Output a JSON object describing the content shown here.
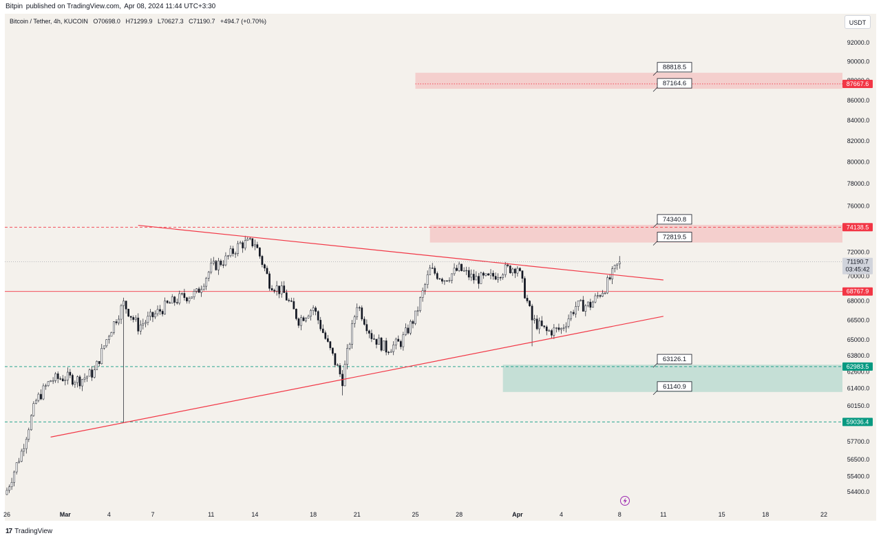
{
  "header": {
    "publisher": "Bitpin",
    "published_text": "published on TradingView.com,",
    "date_text": "Apr 08, 2024 11:44 UTC+3:30"
  },
  "symbol": {
    "name": "Bitcoin / Tether, 4h, KUCOIN",
    "open": "O70698.0",
    "high": "H71299.9",
    "low": "L70627.3",
    "close": "C71190.7",
    "change": "+494.7 (+0.70%)"
  },
  "currency": "USDT",
  "footer": {
    "logo": "17",
    "brand": "TradingView"
  },
  "colors": {
    "background": "#f4f1ec",
    "up": "#ffffff",
    "down": "#131722",
    "resistance": "#f23645",
    "support": "#089981",
    "zone_red": "rgba(242,54,69,0.18)",
    "zone_green": "rgba(8,153,129,0.20)"
  },
  "chart_data": {
    "type": "candlestick",
    "x_unit": "date (2024, 4h bars)",
    "x_range": [
      "2024-02-26",
      "2024-04-23"
    ],
    "y_scale": "log",
    "price_ticks": [
      92000.0,
      90000.0,
      88000.0,
      86000.0,
      84000.0,
      82000.0,
      80000.0,
      78000.0,
      76000.0,
      72000.0,
      70000.0,
      68000.0,
      66500.0,
      65000.0,
      63800.0,
      62600.0,
      61400.0,
      60150.0,
      57700.0,
      56500.0,
      55400.0,
      54400.0
    ],
    "x_ticks": [
      "26",
      "Mar",
      "4",
      "7",
      "11",
      "14",
      "18",
      "21",
      "25",
      "28",
      "Apr",
      "4",
      "8",
      "11",
      "15",
      "18",
      "22"
    ],
    "x_tick_dates": [
      "2024-02-26",
      "2024-03-01",
      "2024-03-04",
      "2024-03-07",
      "2024-03-11",
      "2024-03-14",
      "2024-03-18",
      "2024-03-21",
      "2024-03-25",
      "2024-03-28",
      "2024-04-01",
      "2024-04-04",
      "2024-04-08",
      "2024-04-11",
      "2024-04-15",
      "2024-04-18",
      "2024-04-22"
    ],
    "price_path": [
      [
        "2024-02-26",
        54500
      ],
      [
        "2024-02-27",
        57000
      ],
      [
        "2024-02-28",
        60500
      ],
      [
        "2024-02-29",
        62000
      ],
      [
        "2024-03-01",
        62200
      ],
      [
        "2024-03-02",
        62000
      ],
      [
        "2024-03-03",
        62600
      ],
      [
        "2024-03-04",
        65500
      ],
      [
        "2024-03-05",
        67800
      ],
      [
        "2024-03-06",
        66000
      ],
      [
        "2024-03-07",
        66800
      ],
      [
        "2024-03-08",
        67700
      ],
      [
        "2024-03-09",
        68300
      ],
      [
        "2024-03-10",
        68600
      ],
      [
        "2024-03-11",
        70700
      ],
      [
        "2024-03-12",
        71400
      ],
      [
        "2024-03-13",
        72700
      ],
      [
        "2024-03-14",
        72800
      ],
      [
        "2024-03-15",
        69500
      ],
      [
        "2024-03-16",
        68600
      ],
      [
        "2024-03-17",
        66500
      ],
      [
        "2024-03-18",
        67500
      ],
      [
        "2024-03-19",
        64600
      ],
      [
        "2024-03-20",
        62000
      ],
      [
        "2024-03-21",
        67800
      ],
      [
        "2024-03-22",
        65300
      ],
      [
        "2024-03-23",
        64300
      ],
      [
        "2024-03-24",
        64800
      ],
      [
        "2024-03-25",
        66800
      ],
      [
        "2024-03-26",
        70500
      ],
      [
        "2024-03-27",
        69800
      ],
      [
        "2024-03-28",
        70600
      ],
      [
        "2024-03-29",
        69800
      ],
      [
        "2024-03-30",
        69800
      ],
      [
        "2024-03-31",
        70500
      ],
      [
        "2024-04-01",
        70800
      ],
      [
        "2024-04-02",
        66500
      ],
      [
        "2024-04-03",
        65600
      ],
      [
        "2024-04-04",
        65800
      ],
      [
        "2024-04-05",
        67600
      ],
      [
        "2024-04-06",
        67700
      ],
      [
        "2024-04-07",
        69100
      ],
      [
        "2024-04-08",
        71190
      ]
    ],
    "lows_marked": [
      [
        "2024-03-05",
        59000
      ],
      [
        "2024-03-20",
        60900
      ],
      [
        "2024-04-02",
        64500
      ]
    ],
    "last_price": 71190.7,
    "countdown": "03:45:42",
    "horizontal_levels": [
      {
        "price": 87667.6,
        "label": "87667.6",
        "style": "dotted",
        "color": "#f23645"
      },
      {
        "price": 74138.5,
        "label": "74138.5",
        "style": "dashed",
        "color": "#f23645"
      },
      {
        "price": 68767.9,
        "label": "68767.9",
        "style": "solid",
        "color": "#f23645"
      },
      {
        "price": 62983.5,
        "label": "62983.5",
        "style": "dashed",
        "color": "#089981"
      },
      {
        "price": 59036.4,
        "label": "59036.4",
        "style": "dashed",
        "color": "#089981"
      }
    ],
    "zones": [
      {
        "type": "resistance",
        "from_date": "2024-03-25",
        "to_date": "2024-04-23",
        "top": 88818.5,
        "bottom": 87164.6
      },
      {
        "type": "resistance",
        "from_date": "2024-03-26",
        "to_date": "2024-04-23",
        "top": 74340.8,
        "bottom": 72819.5
      },
      {
        "type": "support",
        "from_date": "2024-03-31",
        "to_date": "2024-04-23",
        "top": 63126.1,
        "bottom": 61140.9
      }
    ],
    "callouts": [
      "88818.5",
      "87164.6",
      "74340.8",
      "72819.5",
      "63126.1",
      "61140.9"
    ],
    "trendlines": [
      {
        "name": "upper",
        "from": [
          "2024-03-06",
          74300
        ],
        "to": [
          "2024-04-11",
          69700
        ],
        "color": "#f23645"
      },
      {
        "name": "lower",
        "from": [
          "2024-02-29",
          58000
        ],
        "to": [
          "2024-04-11",
          66800
        ],
        "color": "#f23645"
      }
    ]
  }
}
